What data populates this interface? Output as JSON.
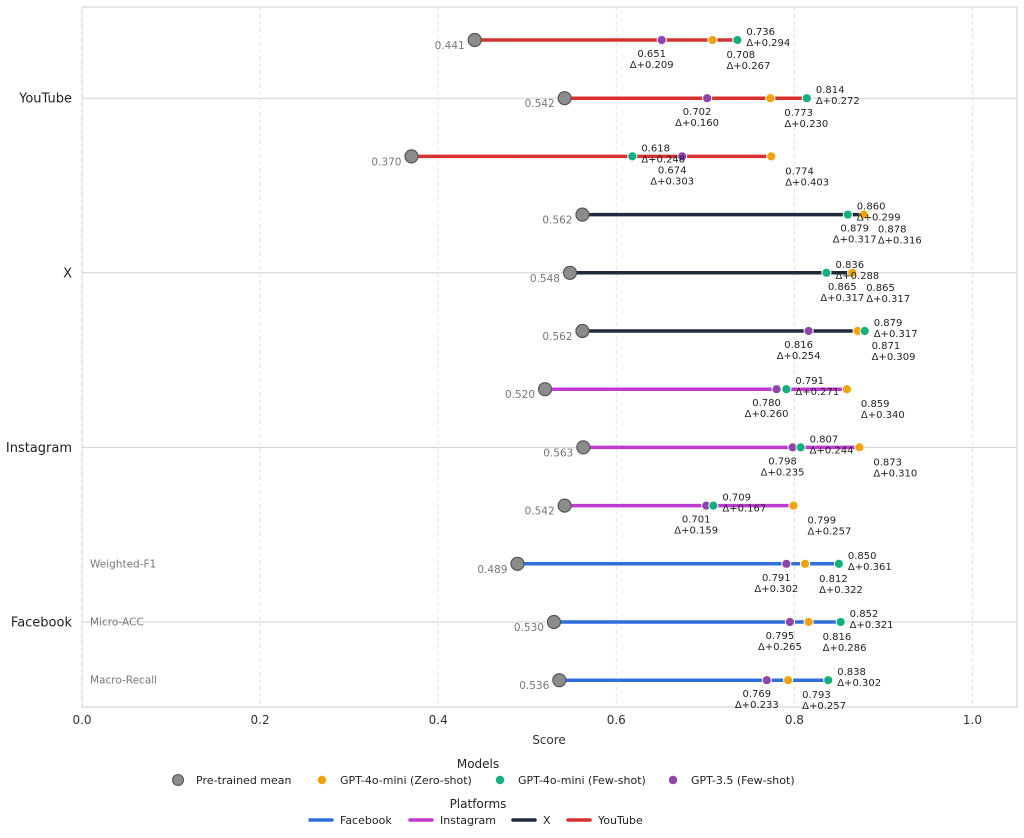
{
  "chart_data": {
    "type": "dumbbell",
    "xlabel": "Score",
    "xlim": [
      0,
      1.05
    ],
    "xticks": [
      "0.0",
      "0.2",
      "0.4",
      "0.6",
      "0.8",
      "1.0"
    ],
    "xtick_values": [
      0,
      0.2,
      0.4,
      0.6,
      0.8,
      1.0
    ],
    "grid": true,
    "legend_placement": "bottom-center",
    "platforms": [
      "YouTube",
      "X",
      "Instagram",
      "Facebook"
    ],
    "metrics": [
      "Weighted-F1",
      "Micro-ACC",
      "Macro-Recall"
    ],
    "legend": {
      "models_title": "Models",
      "models": [
        {
          "key": "pretrained",
          "label": "Pre-trained mean",
          "color": "#8c8c8c"
        },
        {
          "key": "zero",
          "label": "GPT-4o-mini (Zero-shot)",
          "color": "#f0a30a"
        },
        {
          "key": "few",
          "label": "GPT-4o-mini (Few-shot)",
          "color": "#11b080"
        },
        {
          "key": "gpt35",
          "label": "GPT-3.5 (Few-shot)",
          "color": "#8e44ad"
        }
      ],
      "platforms_title": "Platforms",
      "platforms": [
        {
          "label": "Facebook",
          "color": "#2f6fdb"
        },
        {
          "label": "Instagram",
          "color": "#c03ad0"
        },
        {
          "label": "X",
          "color": "#1f2a3a"
        },
        {
          "label": "YouTube",
          "color": "#d93030"
        }
      ]
    },
    "rows": [
      {
        "platform": "YouTube",
        "metric": "Weighted-F1",
        "pretrained": 0.441,
        "pretrained_label": "0.441",
        "zero": 0.708,
        "zero_label": "0.708",
        "zero_delta": "Δ+0.267",
        "few": 0.736,
        "few_label": "0.736",
        "few_delta": "Δ+0.294",
        "gpt35": 0.651,
        "gpt35_label": "0.651",
        "gpt35_delta": "Δ+0.209"
      },
      {
        "platform": "YouTube",
        "metric": "Micro-ACC",
        "pretrained": 0.542,
        "pretrained_label": "0.542",
        "zero": 0.773,
        "zero_label": "0.773",
        "zero_delta": "Δ+0.230",
        "few": 0.814,
        "few_label": "0.814",
        "few_delta": "Δ+0.272",
        "gpt35": 0.702,
        "gpt35_label": "0.702",
        "gpt35_delta": "Δ+0.160"
      },
      {
        "platform": "YouTube",
        "metric": "Macro-Recall",
        "pretrained": 0.37,
        "pretrained_label": "0.370",
        "zero": 0.774,
        "zero_label": "0.774",
        "zero_delta": "Δ+0.403",
        "few": 0.618,
        "few_label": "0.618",
        "few_delta": "Δ+0.248",
        "gpt35": 0.674,
        "gpt35_label": "0.674",
        "gpt35_delta": "Δ+0.303"
      },
      {
        "platform": "X",
        "metric": "Weighted-F1",
        "pretrained": 0.562,
        "pretrained_label": "0.562",
        "zero": 0.878,
        "zero_label": "0.878",
        "zero_delta": "Δ+0.316",
        "few": 0.86,
        "few_label": "0.860",
        "few_delta": "Δ+0.299",
        "gpt35": 0.879,
        "gpt35_label": "0.879",
        "gpt35_delta": "Δ+0.317"
      },
      {
        "platform": "X",
        "metric": "Micro-ACC",
        "pretrained": 0.548,
        "pretrained_label": "0.548",
        "zero": 0.865,
        "zero_label": "0.865",
        "zero_delta": "Δ+0.317",
        "few": 0.836,
        "few_label": "0.836",
        "few_delta": "Δ+0.288",
        "gpt35": 0.865,
        "gpt35_label": "0.865",
        "gpt35_delta": "Δ+0.317"
      },
      {
        "platform": "X",
        "metric": "Macro-Recall",
        "pretrained": 0.562,
        "pretrained_label": "0.562",
        "zero": 0.871,
        "zero_label": "0.871",
        "zero_delta": "Δ+0.309",
        "few": 0.879,
        "few_label": "0.879",
        "few_delta": "Δ+0.317",
        "gpt35": 0.816,
        "gpt35_label": "0.816",
        "gpt35_delta": "Δ+0.254"
      },
      {
        "platform": "Instagram",
        "metric": "Weighted-F1",
        "pretrained": 0.52,
        "pretrained_label": "0.520",
        "zero": 0.859,
        "zero_label": "0.859",
        "zero_delta": "Δ+0.340",
        "few": 0.791,
        "few_label": "0.791",
        "few_delta": "Δ+0.271",
        "gpt35": 0.78,
        "gpt35_label": "0.780",
        "gpt35_delta": "Δ+0.260"
      },
      {
        "platform": "Instagram",
        "metric": "Micro-ACC",
        "pretrained": 0.563,
        "pretrained_label": "0.563",
        "zero": 0.873,
        "zero_label": "0.873",
        "zero_delta": "Δ+0.310",
        "few": 0.807,
        "few_label": "0.807",
        "few_delta": "Δ+0.244",
        "gpt35": 0.798,
        "gpt35_label": "0.798",
        "gpt35_delta": "Δ+0.235"
      },
      {
        "platform": "Instagram",
        "metric": "Macro-Recall",
        "pretrained": 0.542,
        "pretrained_label": "0.542",
        "zero": 0.799,
        "zero_label": "0.799",
        "zero_delta": "Δ+0.257",
        "few": 0.709,
        "few_label": "0.709",
        "few_delta": "Δ+0.167",
        "gpt35": 0.701,
        "gpt35_label": "0.701",
        "gpt35_delta": "Δ+0.159"
      },
      {
        "platform": "Facebook",
        "metric": "Weighted-F1",
        "pretrained": 0.489,
        "pretrained_label": "0.489",
        "zero": 0.812,
        "zero_label": "0.812",
        "zero_delta": "Δ+0.322",
        "few": 0.85,
        "few_label": "0.850",
        "few_delta": "Δ+0.361",
        "gpt35": 0.791,
        "gpt35_label": "0.791",
        "gpt35_delta": "Δ+0.302"
      },
      {
        "platform": "Facebook",
        "metric": "Micro-ACC",
        "pretrained": 0.53,
        "pretrained_label": "0.530",
        "zero": 0.816,
        "zero_label": "0.816",
        "zero_delta": "Δ+0.286",
        "few": 0.852,
        "few_label": "0.852",
        "few_delta": "Δ+0.321",
        "gpt35": 0.795,
        "gpt35_label": "0.795",
        "gpt35_delta": "Δ+0.265"
      },
      {
        "platform": "Facebook",
        "metric": "Macro-Recall",
        "pretrained": 0.536,
        "pretrained_label": "0.536",
        "zero": 0.793,
        "zero_label": "0.793",
        "zero_delta": "Δ+0.257",
        "few": 0.838,
        "few_label": "0.838",
        "few_delta": "Δ+0.302",
        "gpt35": 0.769,
        "gpt35_label": "0.769",
        "gpt35_delta": "Δ+0.233"
      }
    ]
  }
}
